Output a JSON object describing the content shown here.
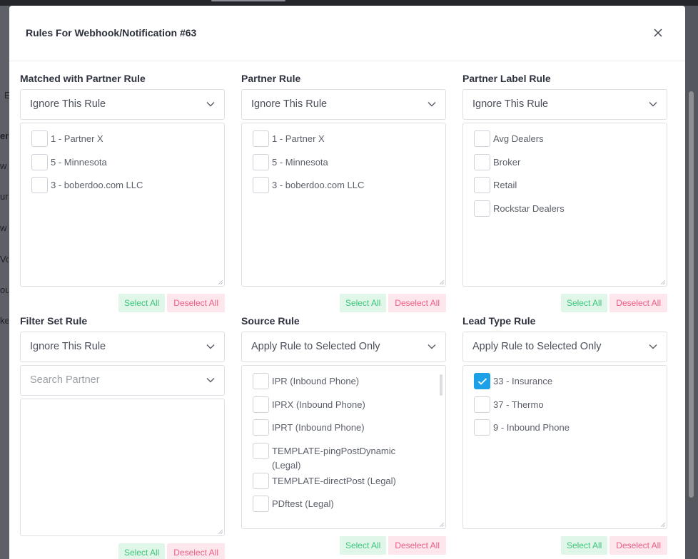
{
  "modal": {
    "title": "Rules For Webhook/Notification #63",
    "close_icon": "close-icon"
  },
  "backdrop_fragments": [
    "E",
    "en",
    "w",
    "urc",
    "w",
    "Vo",
    "ou",
    "ke"
  ],
  "buttons": {
    "select_all": "Select All",
    "deselect_all": "Deselect All"
  },
  "rules": {
    "matched_partner": {
      "label": "Matched with Partner Rule",
      "selected": "Ignore This Rule",
      "items": [
        {
          "label": "1 - Partner X",
          "checked": false
        },
        {
          "label": "5 - Minnesota",
          "checked": false
        },
        {
          "label": "3 - boberdoo.com LLC",
          "checked": false
        }
      ]
    },
    "partner": {
      "label": "Partner Rule",
      "selected": "Ignore This Rule",
      "items": [
        {
          "label": "1 - Partner X",
          "checked": false
        },
        {
          "label": "5 - Minnesota",
          "checked": false
        },
        {
          "label": "3 - boberdoo.com LLC",
          "checked": false
        }
      ]
    },
    "partner_label": {
      "label": "Partner Label Rule",
      "selected": "Ignore This Rule",
      "items": [
        {
          "label": "Avg Dealers",
          "checked": false
        },
        {
          "label": "Broker",
          "checked": false
        },
        {
          "label": "Retail",
          "checked": false
        },
        {
          "label": "Rockstar Dealers",
          "checked": false
        }
      ]
    },
    "filter_set": {
      "label": "Filter Set Rule",
      "selected": "Ignore This Rule",
      "search_placeholder": "Search Partner",
      "items": []
    },
    "source": {
      "label": "Source Rule",
      "selected": "Apply Rule to Selected Only",
      "items": [
        {
          "label": "IPR (Inbound Phone)",
          "checked": false
        },
        {
          "label": "IPRX (Inbound Phone)",
          "checked": false
        },
        {
          "label": "IPRT (Inbound Phone)",
          "checked": false
        },
        {
          "label": "TEMPLATE-pingPostDynamic (Legal)",
          "checked": false
        },
        {
          "label": "TEMPLATE-directPost (Legal)",
          "checked": false
        },
        {
          "label": "PDftest (Legal)",
          "checked": false
        }
      ]
    },
    "lead_type": {
      "label": "Lead Type Rule",
      "selected": "Apply Rule to Selected Only",
      "items": [
        {
          "label": "33 - Insurance",
          "checked": true
        },
        {
          "label": "37 - Thermo",
          "checked": false
        },
        {
          "label": "9 - Inbound Phone",
          "checked": false
        }
      ]
    }
  },
  "colors": {
    "accent": "#1ca1e8",
    "select_all_text": "#3cc67a",
    "select_all_bg": "#dff6e9",
    "deselect_text": "#ee5d84",
    "deselect_bg": "#fde6ec"
  }
}
